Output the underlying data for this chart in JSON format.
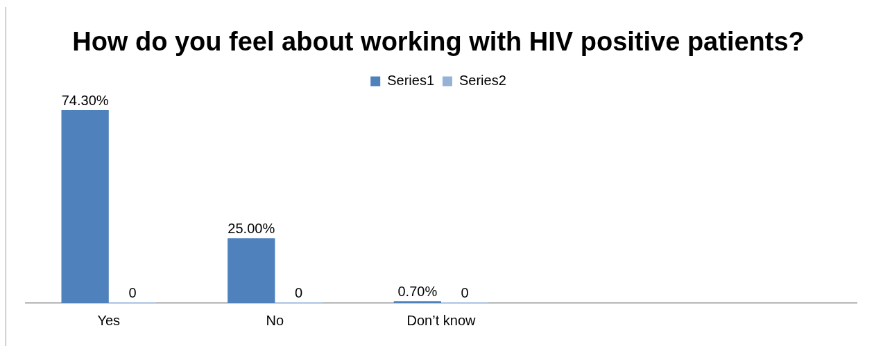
{
  "chart_data": {
    "type": "bar",
    "title": "How do you feel about working with HIV positive patients?",
    "categories": [
      "Yes",
      "No",
      "Don’t know",
      null,
      null
    ],
    "series": [
      {
        "name": "Series1",
        "color": "#4f81bd",
        "values": [
          74.3,
          25.0,
          0.7,
          null,
          null
        ],
        "value_labels": [
          "74.30%",
          "25.00%",
          "0.70%",
          null,
          null
        ]
      },
      {
        "name": "Series2",
        "color": "#95b3d7",
        "values": [
          0,
          0,
          0,
          null,
          null
        ],
        "value_labels": [
          "0",
          "0",
          "0",
          null,
          null
        ]
      }
    ],
    "legend": "top",
    "grid": false
  }
}
